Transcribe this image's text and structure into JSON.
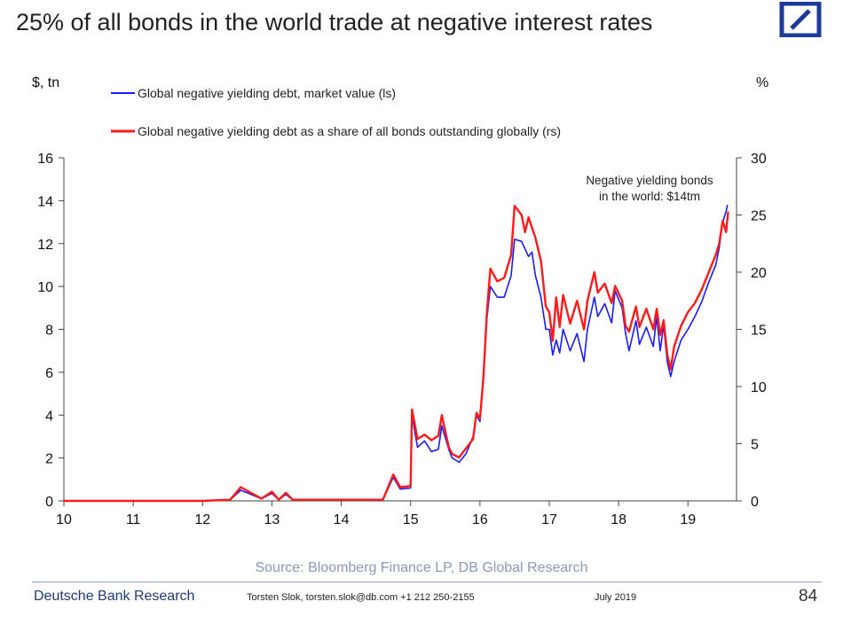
{
  "page": {
    "title": "25% of all bonds in the world trade at negative interest rates",
    "brand_color": "#1e3a9a"
  },
  "footer": {
    "brand": "Deutsche Bank Research",
    "author": "Torsten Slok, torsten.slok@db.com +1 212 250-2155",
    "date": "July 2019",
    "page_number": "84"
  },
  "chart_data": {
    "type": "line",
    "title": "",
    "y_left_label": "$, tn",
    "y_right_label": "%",
    "x_ticks": [
      "10",
      "11",
      "12",
      "13",
      "14",
      "15",
      "16",
      "17",
      "18",
      "19"
    ],
    "xlim": [
      2010,
      2019.7
    ],
    "ylim_left": [
      0,
      16
    ],
    "ylim_right": [
      0,
      30
    ],
    "y_left_ticks": [
      0,
      2,
      4,
      6,
      8,
      10,
      12,
      14,
      16
    ],
    "y_right_ticks": [
      0,
      5,
      10,
      15,
      20,
      25,
      30
    ],
    "grid": false,
    "legend_position": "top-left",
    "annotation": [
      "Negative yielding bonds",
      "in the world: $14tm"
    ],
    "source": "Source: Bloomberg Finance LP, DB Global Research",
    "series": [
      {
        "name": "Global negative yielding debt, market value (ls)",
        "axis": "left",
        "color": "#1a1aff",
        "points": [
          [
            2010.0,
            0
          ],
          [
            2012.0,
            0
          ],
          [
            2012.4,
            0.05
          ],
          [
            2012.55,
            0.5
          ],
          [
            2012.7,
            0.3
          ],
          [
            2012.85,
            0.1
          ],
          [
            2013.0,
            0.35
          ],
          [
            2013.1,
            0.05
          ],
          [
            2013.2,
            0.3
          ],
          [
            2013.3,
            0.05
          ],
          [
            2014.6,
            0.05
          ],
          [
            2014.75,
            1.1
          ],
          [
            2014.85,
            0.55
          ],
          [
            2015.0,
            0.6
          ],
          [
            2015.02,
            4.0
          ],
          [
            2015.1,
            2.5
          ],
          [
            2015.2,
            2.8
          ],
          [
            2015.3,
            2.3
          ],
          [
            2015.4,
            2.4
          ],
          [
            2015.45,
            3.5
          ],
          [
            2015.55,
            2.4
          ],
          [
            2015.6,
            2.0
          ],
          [
            2015.7,
            1.8
          ],
          [
            2015.8,
            2.2
          ],
          [
            2015.9,
            3.0
          ],
          [
            2015.95,
            4.0
          ],
          [
            2016.0,
            3.7
          ],
          [
            2016.05,
            6.0
          ],
          [
            2016.1,
            8.5
          ],
          [
            2016.15,
            10.0
          ],
          [
            2016.25,
            9.5
          ],
          [
            2016.35,
            9.5
          ],
          [
            2016.45,
            10.5
          ],
          [
            2016.5,
            12.2
          ],
          [
            2016.6,
            12.1
          ],
          [
            2016.7,
            11.4
          ],
          [
            2016.75,
            11.6
          ],
          [
            2016.8,
            10.5
          ],
          [
            2016.88,
            9.5
          ],
          [
            2016.95,
            8.0
          ],
          [
            2017.0,
            8.0
          ],
          [
            2017.05,
            6.8
          ],
          [
            2017.1,
            7.5
          ],
          [
            2017.15,
            6.9
          ],
          [
            2017.2,
            8.0
          ],
          [
            2017.3,
            7.0
          ],
          [
            2017.4,
            7.8
          ],
          [
            2017.5,
            6.5
          ],
          [
            2017.55,
            8.0
          ],
          [
            2017.65,
            9.5
          ],
          [
            2017.7,
            8.6
          ],
          [
            2017.8,
            9.2
          ],
          [
            2017.9,
            8.3
          ],
          [
            2017.95,
            9.8
          ],
          [
            2018.05,
            9.0
          ],
          [
            2018.1,
            7.8
          ],
          [
            2018.15,
            7.0
          ],
          [
            2018.25,
            8.4
          ],
          [
            2018.3,
            7.3
          ],
          [
            2018.4,
            8.1
          ],
          [
            2018.5,
            7.2
          ],
          [
            2018.55,
            8.6
          ],
          [
            2018.6,
            7.0
          ],
          [
            2018.65,
            8.2
          ],
          [
            2018.7,
            6.5
          ],
          [
            2018.75,
            5.8
          ],
          [
            2018.8,
            6.5
          ],
          [
            2018.9,
            7.5
          ],
          [
            2019.0,
            8.0
          ],
          [
            2019.1,
            8.6
          ],
          [
            2019.2,
            9.3
          ],
          [
            2019.3,
            10.2
          ],
          [
            2019.4,
            11.0
          ],
          [
            2019.45,
            11.8
          ],
          [
            2019.5,
            13.0
          ],
          [
            2019.55,
            13.5
          ],
          [
            2019.57,
            13.8
          ]
        ]
      },
      {
        "name": "Global negative yielding debt as a share of all bonds outstanding globally (rs)",
        "axis": "right",
        "color": "#ff1a1a",
        "points": [
          [
            2010.0,
            0
          ],
          [
            2012.0,
            0
          ],
          [
            2012.4,
            0.1
          ],
          [
            2012.55,
            1.2
          ],
          [
            2012.7,
            0.7
          ],
          [
            2012.85,
            0.2
          ],
          [
            2013.0,
            0.8
          ],
          [
            2013.1,
            0.1
          ],
          [
            2013.2,
            0.7
          ],
          [
            2013.3,
            0.1
          ],
          [
            2014.6,
            0.1
          ],
          [
            2014.75,
            2.3
          ],
          [
            2014.85,
            1.2
          ],
          [
            2015.0,
            1.3
          ],
          [
            2015.02,
            8.0
          ],
          [
            2015.1,
            5.4
          ],
          [
            2015.2,
            5.8
          ],
          [
            2015.3,
            5.3
          ],
          [
            2015.4,
            5.7
          ],
          [
            2015.45,
            7.5
          ],
          [
            2015.55,
            4.7
          ],
          [
            2015.6,
            4.1
          ],
          [
            2015.7,
            3.8
          ],
          [
            2015.8,
            4.6
          ],
          [
            2015.9,
            5.4
          ],
          [
            2015.95,
            7.7
          ],
          [
            2016.0,
            7.2
          ],
          [
            2016.05,
            10.8
          ],
          [
            2016.1,
            16.5
          ],
          [
            2016.15,
            20.3
          ],
          [
            2016.25,
            19.2
          ],
          [
            2016.35,
            19.5
          ],
          [
            2016.45,
            21.5
          ],
          [
            2016.5,
            25.8
          ],
          [
            2016.6,
            25.0
          ],
          [
            2016.65,
            23.5
          ],
          [
            2016.7,
            24.8
          ],
          [
            2016.8,
            23.0
          ],
          [
            2016.88,
            21.0
          ],
          [
            2016.95,
            17.0
          ],
          [
            2017.0,
            16.5
          ],
          [
            2017.05,
            14.0
          ],
          [
            2017.1,
            17.8
          ],
          [
            2017.15,
            15.2
          ],
          [
            2017.2,
            18.0
          ],
          [
            2017.3,
            15.5
          ],
          [
            2017.4,
            17.5
          ],
          [
            2017.5,
            15.0
          ],
          [
            2017.55,
            17.5
          ],
          [
            2017.65,
            20.0
          ],
          [
            2017.7,
            18.2
          ],
          [
            2017.8,
            19.0
          ],
          [
            2017.9,
            17.3
          ],
          [
            2017.95,
            18.8
          ],
          [
            2018.05,
            17.5
          ],
          [
            2018.1,
            15.3
          ],
          [
            2018.15,
            14.8
          ],
          [
            2018.25,
            17.0
          ],
          [
            2018.3,
            15.2
          ],
          [
            2018.4,
            16.8
          ],
          [
            2018.5,
            15.0
          ],
          [
            2018.55,
            16.8
          ],
          [
            2018.6,
            14.5
          ],
          [
            2018.65,
            15.8
          ],
          [
            2018.7,
            12.8
          ],
          [
            2018.75,
            11.5
          ],
          [
            2018.8,
            13.5
          ],
          [
            2018.9,
            15.3
          ],
          [
            2019.0,
            16.5
          ],
          [
            2019.1,
            17.3
          ],
          [
            2019.2,
            18.5
          ],
          [
            2019.3,
            20.0
          ],
          [
            2019.4,
            21.5
          ],
          [
            2019.45,
            22.5
          ],
          [
            2019.5,
            24.5
          ],
          [
            2019.55,
            23.5
          ],
          [
            2019.58,
            25.3
          ]
        ]
      }
    ]
  }
}
